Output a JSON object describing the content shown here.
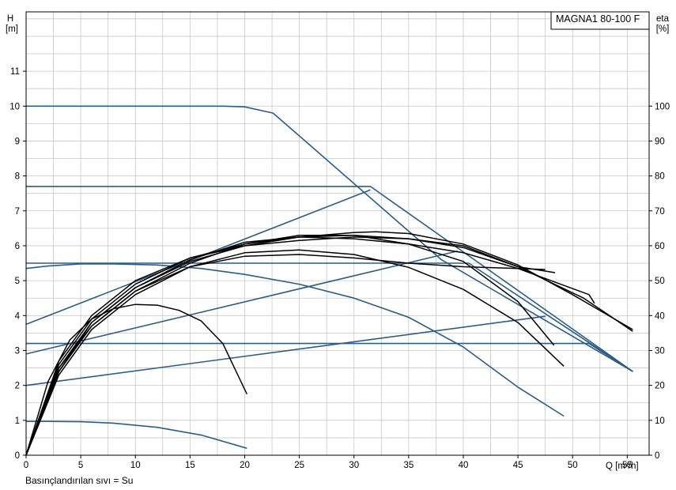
{
  "chart_data": {
    "type": "line",
    "title": "MAGNA1 80-100 F",
    "footnote": "Basınçlandırılan sıvı = Su",
    "xlabel": "Q [m³/h]",
    "ylabel_left": [
      "H",
      "[m]"
    ],
    "ylabel_right": [
      "eta",
      "[%]"
    ],
    "xlim": [
      0,
      57
    ],
    "ylim_left": [
      0,
      12.7
    ],
    "ylim_right": [
      0,
      127
    ],
    "xticks": [
      0,
      5,
      10,
      15,
      20,
      25,
      30,
      35,
      40,
      45,
      50,
      55
    ],
    "yticks_left": [
      0,
      1,
      2,
      3,
      4,
      5,
      6,
      7,
      8,
      9,
      10,
      11
    ],
    "yticks_right": [
      0,
      10,
      20,
      30,
      40,
      50,
      60,
      70,
      80,
      90,
      100
    ],
    "grid": true,
    "colors": {
      "head": "#2b5d87",
      "efficiency": "#000000",
      "grid": "#c8c8c8"
    },
    "head_curves": [
      {
        "x": [
          0,
          10,
          18,
          20,
          22.6,
          38,
          55.5
        ],
        "y": [
          10,
          10,
          10,
          9.98,
          9.8,
          5.6,
          2.4
        ]
      },
      {
        "x": [
          0,
          31.5,
          55.5
        ],
        "y": [
          7.7,
          7.7,
          2.4
        ]
      },
      {
        "x": [
          0,
          40.5,
          55.5
        ],
        "y": [
          5.5,
          5.5,
          2.4
        ]
      },
      {
        "x": [
          0,
          51.5,
          55.5
        ],
        "y": [
          3.2,
          3.2,
          2.4
        ]
      },
      {
        "x": [
          0,
          2,
          5,
          8,
          12,
          16,
          20,
          25,
          30,
          35,
          40,
          45,
          49.2
        ],
        "y": [
          5.35,
          5.42,
          5.48,
          5.48,
          5.45,
          5.35,
          5.18,
          4.9,
          4.5,
          3.95,
          3.1,
          1.95,
          1.12
        ]
      },
      {
        "x": [
          0,
          2,
          5,
          8,
          12,
          16,
          20.2
        ],
        "y": [
          0.97,
          0.97,
          0.96,
          0.92,
          0.8,
          0.58,
          0.2
        ]
      },
      {
        "x": [
          0,
          31.5
        ],
        "y": [
          3.75,
          7.6
        ]
      },
      {
        "x": [
          0,
          39.5
        ],
        "y": [
          2.9,
          5.85
        ]
      },
      {
        "x": [
          0,
          47.5
        ],
        "y": [
          2.0,
          3.98
        ]
      }
    ],
    "efficiency_curves": [
      {
        "x": [
          0,
          2,
          4,
          6,
          8,
          10,
          12,
          14,
          16,
          18,
          20.2
        ],
        "y": [
          0,
          21,
          33,
          39,
          42,
          43.2,
          43,
          41.5,
          38.5,
          32,
          17.5
        ]
      },
      {
        "x": [
          0,
          3,
          6,
          10,
          15,
          20,
          25,
          30,
          35,
          40,
          45,
          49.2
        ],
        "y": [
          0,
          23,
          36,
          46,
          54,
          58,
          58.8,
          57.5,
          53.8,
          47.5,
          38,
          25.5
        ]
      },
      {
        "x": [
          0,
          3,
          6,
          10,
          15,
          20,
          25,
          30,
          35,
          40,
          45,
          48.3
        ],
        "y": [
          0,
          24,
          37,
          47,
          55,
          60.5,
          63,
          63,
          60.5,
          55.5,
          44,
          31.5
        ]
      },
      {
        "x": [
          0,
          3,
          6,
          10,
          15,
          20,
          25,
          30,
          35,
          40,
          45,
          51.5,
          52
        ],
        "y": [
          0,
          25,
          38,
          48,
          56,
          61,
          62.5,
          62,
          60.5,
          58,
          53.5,
          46,
          43.5
        ]
      },
      {
        "x": [
          0,
          3,
          6,
          10,
          15,
          20,
          25,
          30,
          35,
          40,
          45,
          48.4
        ],
        "y": [
          0,
          26,
          39,
          49,
          56.5,
          60.5,
          62.5,
          63,
          62,
          59.5,
          54,
          52.3
        ]
      },
      {
        "x": [
          0,
          3,
          6,
          10,
          15,
          20,
          25,
          30,
          35,
          40,
          45,
          51,
          55.5
        ],
        "y": [
          0,
          27,
          40,
          50,
          56.5,
          60,
          61.5,
          62.5,
          62,
          60,
          54,
          45,
          35.5
        ]
      },
      {
        "x": [
          0,
          3,
          6,
          10,
          15,
          20,
          25,
          30,
          32,
          35,
          40,
          45,
          50,
          55.5
        ],
        "y": [
          0,
          24,
          38,
          48,
          55.5,
          60,
          62.5,
          63.8,
          64,
          63.5,
          60.5,
          54.5,
          46,
          36
        ]
      },
      {
        "x": [
          0,
          3,
          6,
          10,
          15,
          20,
          25,
          30,
          35,
          40,
          45,
          47.5
        ],
        "y": [
          0,
          25,
          37,
          47,
          54,
          57,
          57.5,
          56.5,
          55,
          54,
          53.5,
          53.2
        ]
      }
    ]
  }
}
